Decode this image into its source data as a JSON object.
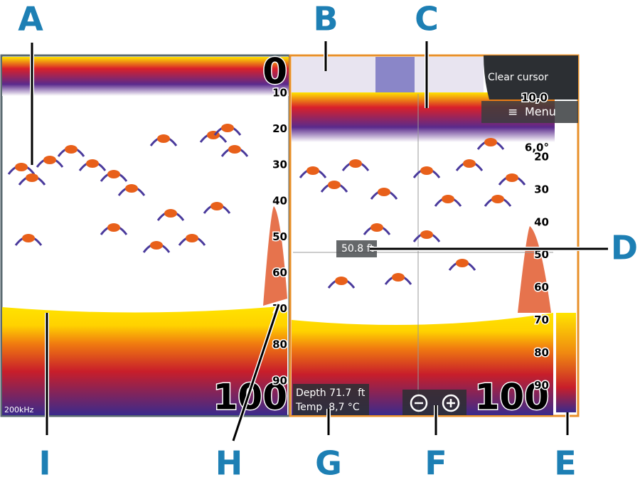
{
  "callouts": [
    "A",
    "B",
    "C",
    "D",
    "E",
    "F",
    "G",
    "H",
    "I"
  ],
  "left_panel": {
    "top_depth": "0",
    "depth_scale": [
      "10",
      "20",
      "30",
      "40",
      "50",
      "60",
      "70",
      "80",
      "90"
    ],
    "range": "100",
    "frequency": "200kHz"
  },
  "right_panel": {
    "top_reading": "10,0",
    "temperature_reading": "6,0°",
    "depth_scale": [
      "20",
      "30",
      "40",
      "50",
      "60",
      "70",
      "80",
      "90"
    ],
    "range": "100",
    "cursor_depth": "50.8 ft",
    "clear_cursor": "Clear cursor",
    "menu": "Menu",
    "depth_readout": "Depth 71.7  ft",
    "temp_readout": "Temp  8,7 °C"
  }
}
